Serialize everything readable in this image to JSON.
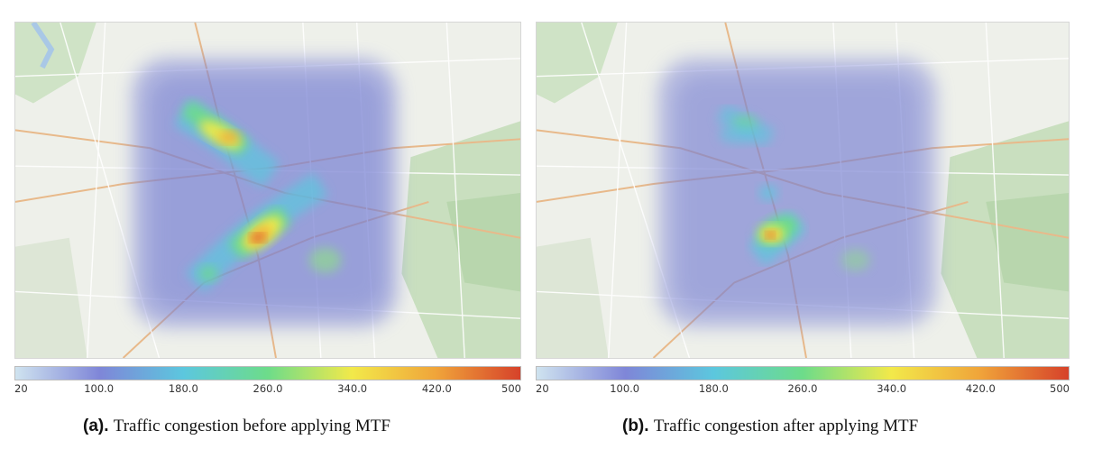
{
  "colors": {
    "gradient": [
      "#cfe3ef",
      "#7f86d8",
      "#5cc7de",
      "#6ddc8a",
      "#f2e94a",
      "#f0a43a",
      "#d6422a"
    ]
  },
  "panels": [
    {
      "id": "a",
      "colorbar": {
        "ticks": [
          "20",
          "100.0",
          "180.0",
          "260.0",
          "340.0",
          "420.0",
          "500"
        ]
      },
      "caption": {
        "label": "(a).",
        "text": "Traffic congestion before applying MTF"
      },
      "hotspots": [
        {
          "name": "north-corridor",
          "intensity": 420
        },
        {
          "name": "central-south-cluster",
          "intensity": 500
        }
      ]
    },
    {
      "id": "b",
      "colorbar": {
        "ticks": [
          "20",
          "100.0",
          "180.0",
          "260.0",
          "340.0",
          "420.0",
          "500"
        ]
      },
      "caption": {
        "label": "(b).",
        "text": "Traffic congestion after applying MTF"
      },
      "hotspots": [
        {
          "name": "north-corridor",
          "intensity": 230
        },
        {
          "name": "central-south-cluster",
          "intensity": 470
        }
      ]
    }
  ]
}
